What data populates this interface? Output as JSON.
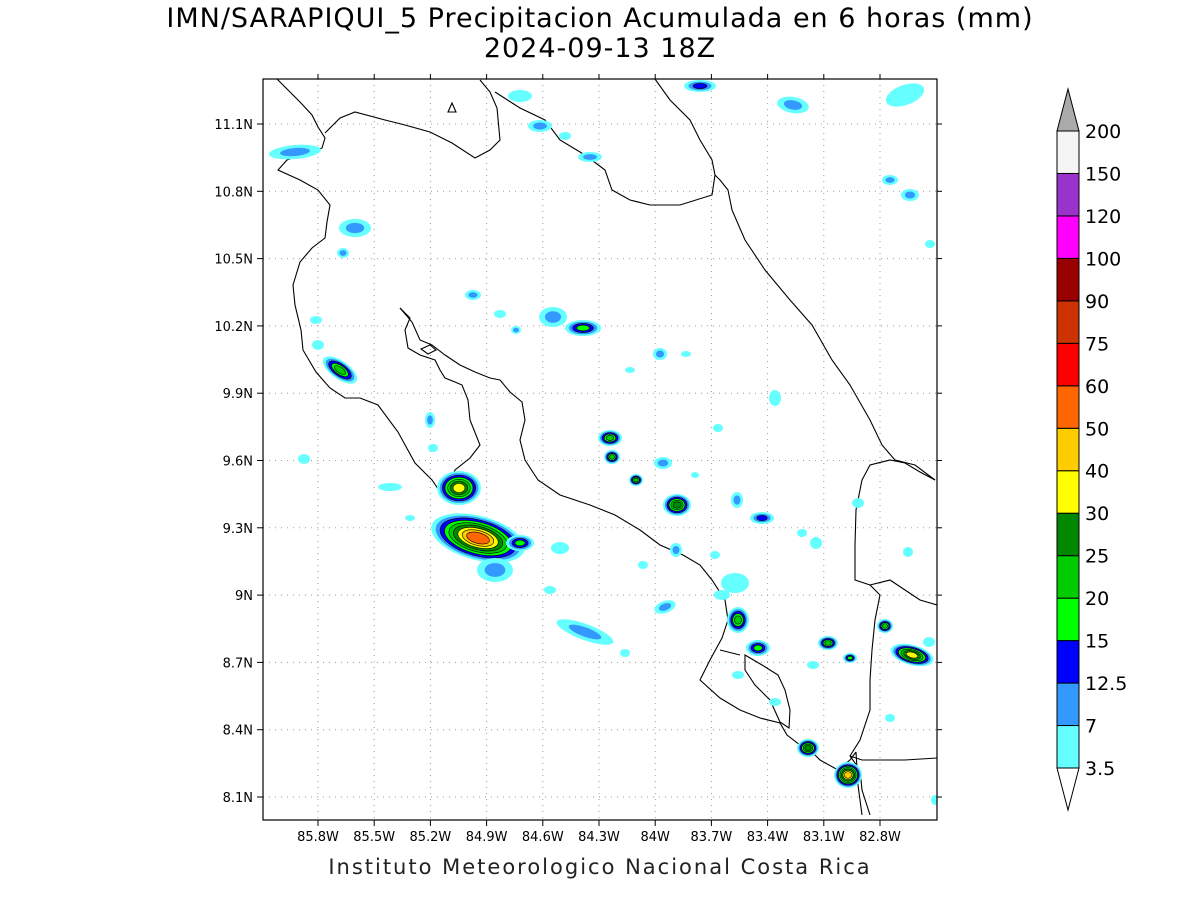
{
  "title": {
    "line1": "IMN/SARAPIQUI_5 Precipitacion Acumulada en 6 horas (mm)",
    "line2": "2024-09-13 18Z"
  },
  "footer": "Instituto Meteorologico Nacional Costa Rica",
  "axes": {
    "x_ticks": [
      "85.8W",
      "85.5W",
      "85.2W",
      "84.9W",
      "84.6W",
      "84.3W",
      "84W",
      "83.7W",
      "83.4W",
      "83.1W",
      "82.8W"
    ],
    "y_ticks": [
      "11.1N",
      "10.8N",
      "10.5N",
      "10.2N",
      "9.9N",
      "9.6N",
      "9.3N",
      "9N",
      "8.7N",
      "8.4N",
      "8.1N"
    ],
    "lon_range": [
      -85.97,
      -82.6
    ],
    "lat_range": [
      8.0,
      11.3
    ],
    "grid": "dotted"
  },
  "legend": {
    "levels": [
      "3.5",
      "7",
      "12.5",
      "15",
      "20",
      "25",
      "30",
      "40",
      "50",
      "60",
      "75",
      "90",
      "100",
      "120",
      "150",
      "200"
    ],
    "colors": [
      "#66ffff",
      "#3399ff",
      "#0000ff",
      "#00ff00",
      "#00cc00",
      "#008800",
      "#ffff00",
      "#ffcc00",
      "#ff6600",
      "#ff0000",
      "#cc3300",
      "#990000",
      "#ff00ff",
      "#9933cc",
      "#f5f5f5",
      "#aaaaaa"
    ],
    "upper_arrow_color": "#aaaaaa",
    "lower_arrow_color": "#ffffff"
  }
}
